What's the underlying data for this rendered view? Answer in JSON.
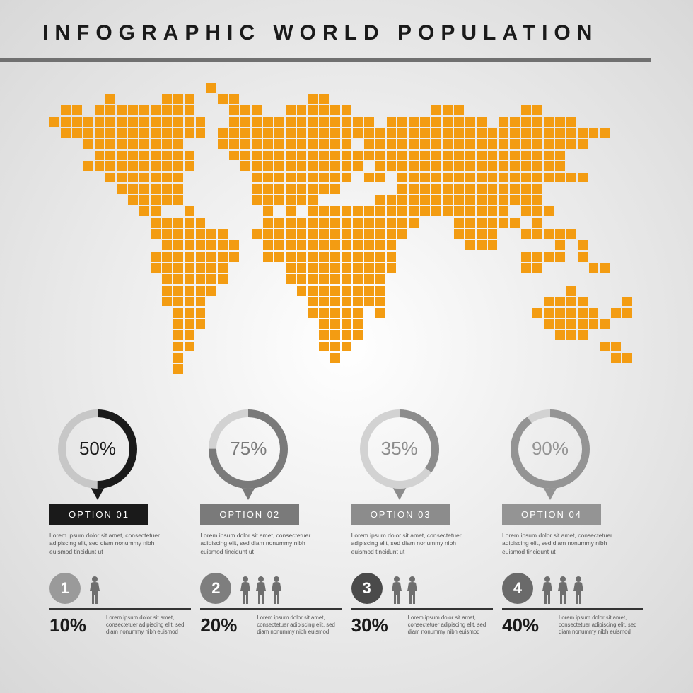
{
  "title": "INFOGRAPHIC WORLD POPULATION",
  "title_fontsize": 30,
  "title_letter_spacing": 9,
  "title_color": "#1a1a1a",
  "rule_color": "#707070",
  "map": {
    "dot_color": "#f39c12",
    "cols": 53,
    "rows": 27,
    "gap": 2,
    "grid": [
      "00000000000000100000000000000000000000000000000000000",
      "00000100001110011000000110000000000000000000000000000",
      "01101111111110001110011111100000001110000011000000000",
      "11111111111111001111111111111011111111101111111000000",
      "01111111111111011111111111111111111111111111111111000",
      "00011111111100011111111111101111111111111111111100000",
      "00001111111110001111111111111111111111111111110000000",
      "00011111111110000111111111110111111111111111110000000",
      "00000111111100000011111111101101111111111111111100000",
      "00000011111100000011111111000001111111111111000000000",
      "00000001111100000011111100000111111111111111000000000",
      "00000000110010000001010111111111111111111011100000000",
      "00000000011111000001111111111111100011111101000000000",
      "00000000011111110011111111111111000011110011111000000",
      "00000000001111111001111111111110000001110000010100000",
      "00000000011111111001111111111110000000000011110100000",
      "00000000011111110000011111111110000000000011000011000",
      "00000000001111110000011111111100000000000000000000000",
      "00000000001111100000001111111100000000000000001000000",
      "00000000001111000000000111111100000000000000111100010",
      "00000000000111000000000111110100000000000001111110110",
      "00000000000111000000000011110000000000000000111111000",
      "00000000000110000000000011110000000000000000011100000",
      "00000000000110000000000011100000000000000000000001100",
      "00000000000100000000000001000000000000000000000000110",
      "00000000000100000000000000000000000000000000000000000",
      "00000000000000000000000000000000000000000000000000000"
    ]
  },
  "options": [
    {
      "percent": 50,
      "label": "OPTION 01",
      "ring_bg": "#c7c7c7",
      "ring_fg": "#1a1a1a",
      "text_color": "#1a1a1a",
      "badge_bg": "#1a1a1a",
      "desc": "Lorem ipsum dolor sit amet, consectetuer adipiscing elit, sed diam nonummy nibh euismod tincidunt ut"
    },
    {
      "percent": 75,
      "label": "OPTION 02",
      "ring_bg": "#d2d2d2",
      "ring_fg": "#7a7a7a",
      "text_color": "#7a7a7a",
      "badge_bg": "#7a7a7a",
      "desc": "Lorem ipsum dolor sit amet, consectetuer adipiscing elit, sed diam nonummy nibh euismod tincidunt ut"
    },
    {
      "percent": 35,
      "label": "OPTION 03",
      "ring_bg": "#d2d2d2",
      "ring_fg": "#8c8c8c",
      "text_color": "#8c8c8c",
      "badge_bg": "#8c8c8c",
      "desc": "Lorem ipsum dolor sit amet, consectetuer adipiscing elit, sed diam nonummy nibh euismod tincidunt ut"
    },
    {
      "percent": 90,
      "label": "OPTION 04",
      "ring_bg": "#d2d2d2",
      "ring_fg": "#949494",
      "text_color": "#949494",
      "badge_bg": "#949494",
      "desc": "Lorem ipsum dolor sit amet, consectetuer adipiscing elit, sed diam nonummy nibh euismod tincidunt ut"
    }
  ],
  "ring": {
    "outer_r": 56,
    "stroke_w": 11
  },
  "stats": [
    {
      "num": "1",
      "pct": "10%",
      "people": 1,
      "circ": "#9a9a9a",
      "person": "#6e6e6e",
      "desc": "Lorem ipsum dolor sit amet, consectetuer adipiscing elit, sed diam nonummy nibh euismod"
    },
    {
      "num": "2",
      "pct": "20%",
      "people": 3,
      "circ": "#7e7e7e",
      "person": "#6e6e6e",
      "desc": "Lorem ipsum dolor sit amet, consectetuer adipiscing elit, sed diam nonummy nibh euismod"
    },
    {
      "num": "3",
      "pct": "30%",
      "people": 2,
      "circ": "#4a4a4a",
      "person": "#6e6e6e",
      "desc": "Lorem ipsum dolor sit amet, consectetuer adipiscing elit, sed diam nonummy nibh euismod"
    },
    {
      "num": "4",
      "pct": "40%",
      "people": 3,
      "circ": "#6a6a6a",
      "person": "#6e6e6e",
      "desc": "Lorem ipsum dolor sit amet, consectetuer adipiscing elit, sed diam nonummy nibh euismod"
    }
  ]
}
